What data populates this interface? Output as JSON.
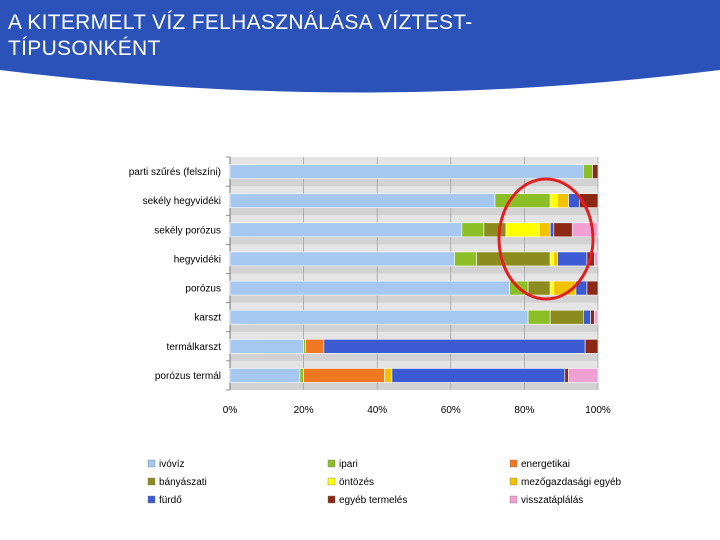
{
  "slide": {
    "title": "A KITERMELT VÍZ FELHASZNÁLÁSA VÍZTEST-TÍPUSONKÉNT",
    "header_color": "#2a52b8"
  },
  "chart_data": {
    "type": "bar",
    "orientation": "horizontal",
    "stacked": true,
    "normalized_percent": true,
    "categories": [
      "parti szűrés (felszíni)",
      "sekély hegyvidéki",
      "sekély porózus",
      "hegyvidéki",
      "porózus",
      "karszt",
      "termálkarszt",
      "porózus termál"
    ],
    "xlim": [
      0,
      100
    ],
    "x_ticks": [
      "0%",
      "20%",
      "40%",
      "60%",
      "80%",
      "100%"
    ],
    "grid": true,
    "legend_position": "bottom",
    "series": [
      {
        "name": "ivóvíz",
        "color": "#a6c8f0",
        "values": [
          96,
          72,
          63,
          61,
          76,
          81,
          20,
          19
        ]
      },
      {
        "name": "ipari",
        "color": "#8cbf26",
        "values": [
          2.5,
          15,
          6,
          6,
          5,
          6,
          0.5,
          1
        ]
      },
      {
        "name": "energetikai",
        "color": "#f07820",
        "values": [
          0,
          0,
          0,
          0,
          0,
          0,
          5,
          22
        ]
      },
      {
        "name": "bányászati",
        "color": "#8c8c1e",
        "values": [
          0,
          0,
          6,
          20,
          6,
          9,
          0,
          0
        ]
      },
      {
        "name": "öntözés",
        "color": "#ffff00",
        "values": [
          0,
          2,
          9,
          1,
          1,
          0,
          0,
          0
        ]
      },
      {
        "name": "mezőgazdasági egyéb",
        "color": "#f2c200",
        "values": [
          0,
          3,
          3,
          1,
          6,
          0,
          0,
          2
        ]
      },
      {
        "name": "fürdő",
        "color": "#3c5ad2",
        "values": [
          0,
          3,
          1,
          8,
          3,
          2,
          71,
          47
        ]
      },
      {
        "name": "egyéb termelés",
        "color": "#8c2814",
        "values": [
          1.5,
          5,
          5,
          2,
          3,
          1,
          3.5,
          1
        ]
      },
      {
        "name": "visszatáplálás",
        "color": "#f0a0d2",
        "values": [
          0,
          0,
          7,
          1,
          0,
          1,
          0,
          8
        ]
      }
    ],
    "annotation": {
      "shape": "ellipse",
      "color": "#e02020"
    }
  }
}
